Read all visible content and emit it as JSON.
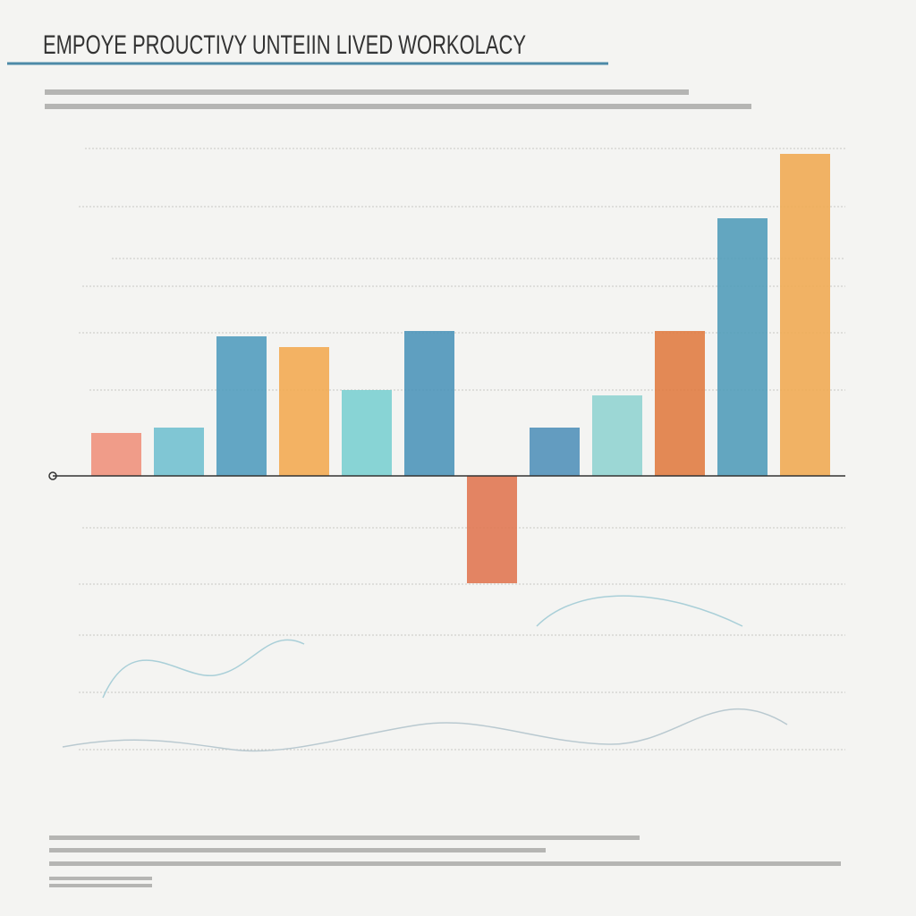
{
  "chart_data": {
    "type": "bar",
    "title": "EMPOYE PROUCTIVY UNTEIIN LIVED WORKOLACY",
    "categories": [
      null,
      null,
      null,
      null,
      null,
      null,
      null,
      null,
      null,
      null,
      null,
      null
    ],
    "values": [
      0.8,
      0.9,
      2.6,
      2.4,
      1.6,
      2.7,
      -2.0,
      0.9,
      1.5,
      2.7,
      4.8,
      6.0
    ],
    "colors": [
      "#ef8f7a",
      "#6fbfcf",
      "#4f9bbd",
      "#f2a94e",
      "#79cfd0",
      "#4a93b8",
      "#e0744f",
      "#4f8fb8",
      "#8fd3d0",
      "#e07a3f",
      "#4f9bb8",
      "#f0a850"
    ],
    "ylim": [
      -5,
      6.5
    ]
  }
}
